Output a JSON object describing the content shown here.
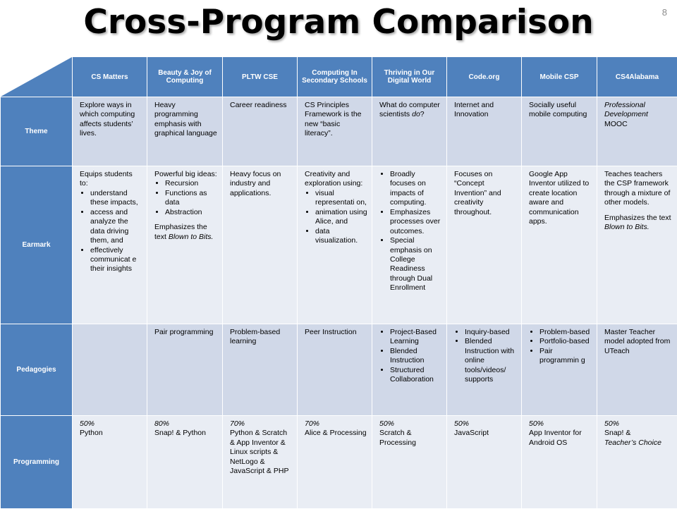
{
  "slide": {
    "title": "Cross-Program Comparison",
    "page_number": "8"
  },
  "columns": [
    "CS Matters",
    "Beauty & Joy of Computing",
    "PLTW CSE",
    "Computing In Secondary Schools",
    "Thriving in Our Digital World",
    "Code.org",
    "Mobile CSP",
    "CS4Alabama"
  ],
  "rows": {
    "theme": {
      "label": "Theme",
      "cells": {
        "cs_matters": "Explore ways in which computing affects students’ lives.",
        "bjc": "Heavy programming emphasis with graphical language",
        "pltw": "Career readiness",
        "ciss": "CS Principles Framework is the new “basic literacy”.",
        "thriving_pre": "What do computer scientists ",
        "thriving_em": "do",
        "thriving_post": "?",
        "codeorg": "Internet and Innovation",
        "mobile": "Socially useful mobile computing",
        "cs4al_em": "Professional Development",
        "cs4al": "MOOC"
      }
    },
    "earmark": {
      "label": "Earmark",
      "cells": {
        "cs_matters_intro": "Equips students to:",
        "cs_matters_bullets": [
          "understand these impacts,",
          "access and analyze the data driving them, and",
          "effectively communicat e their insights"
        ],
        "bjc_intro": "Powerful big ideas:",
        "bjc_bullets": [
          "Recursion",
          "Functions as data",
          "Abstraction"
        ],
        "bjc_post_pre": "Emphasizes the text ",
        "bjc_post_em": "Blown to Bits.",
        "pltw": "Heavy focus on industry and applications.",
        "ciss_intro": "Creativity and exploration using:",
        "ciss_bullets": [
          "visual representati on,",
          "animation using Alice, and",
          "data visualization."
        ],
        "thriving_bullets": [
          "Broadly focuses on impacts of computing.",
          "Emphasizes processes over outcomes.",
          "Special emphasis on College Readiness through Dual Enrollment"
        ],
        "codeorg": "Focuses on “Concept Invention” and creativity throughout.",
        "mobile": "Google App Inventor utilized to create location aware and communication apps.",
        "cs4al_1": "Teaches teachers the CSP framework through a mixture of other models.",
        "cs4al_2": "Emphasizes the text",
        "cs4al_em": "Blown to Bits."
      }
    },
    "pedagogies": {
      "label": "Pedagogies",
      "cells": {
        "cs_matters": "",
        "bjc": "Pair programming",
        "pltw": "Problem-based learning",
        "ciss": "Peer Instruction",
        "thriving_bullets": [
          "Project-Based Learning",
          "Blended Instruction",
          "Structured Collaboration"
        ],
        "codeorg_bullets": [
          "Inquiry-based",
          "Blended Instruction with online tools/videos/ supports"
        ],
        "mobile_bullets": [
          "Problem-based",
          "Portfolio-based",
          "Pair programmin g"
        ],
        "cs4al": "Master Teacher model adopted from UTeach"
      }
    },
    "programming": {
      "label": "Programming",
      "cells": {
        "cs_matters_pct": "50%",
        "cs_matters": "Python",
        "bjc_pct": "80%",
        "bjc": "Snap! & Python",
        "pltw_pct": "70%",
        "pltw": "Python & Scratch & App Inventor & Linux scripts & NetLogo & JavaScript & PHP",
        "ciss_pct": "70%",
        "ciss": "Alice & Processing",
        "thriving_pct": "50%",
        "thriving": "Scratch & Processing",
        "codeorg_pct": "50%",
        "codeorg": "JavaScript",
        "mobile_pct": "50%",
        "mobile": "App Inventor for Android OS",
        "cs4al_pct": "50%",
        "cs4al": "Snap! &",
        "cs4al_em": "Teacher’s Choice"
      }
    }
  }
}
